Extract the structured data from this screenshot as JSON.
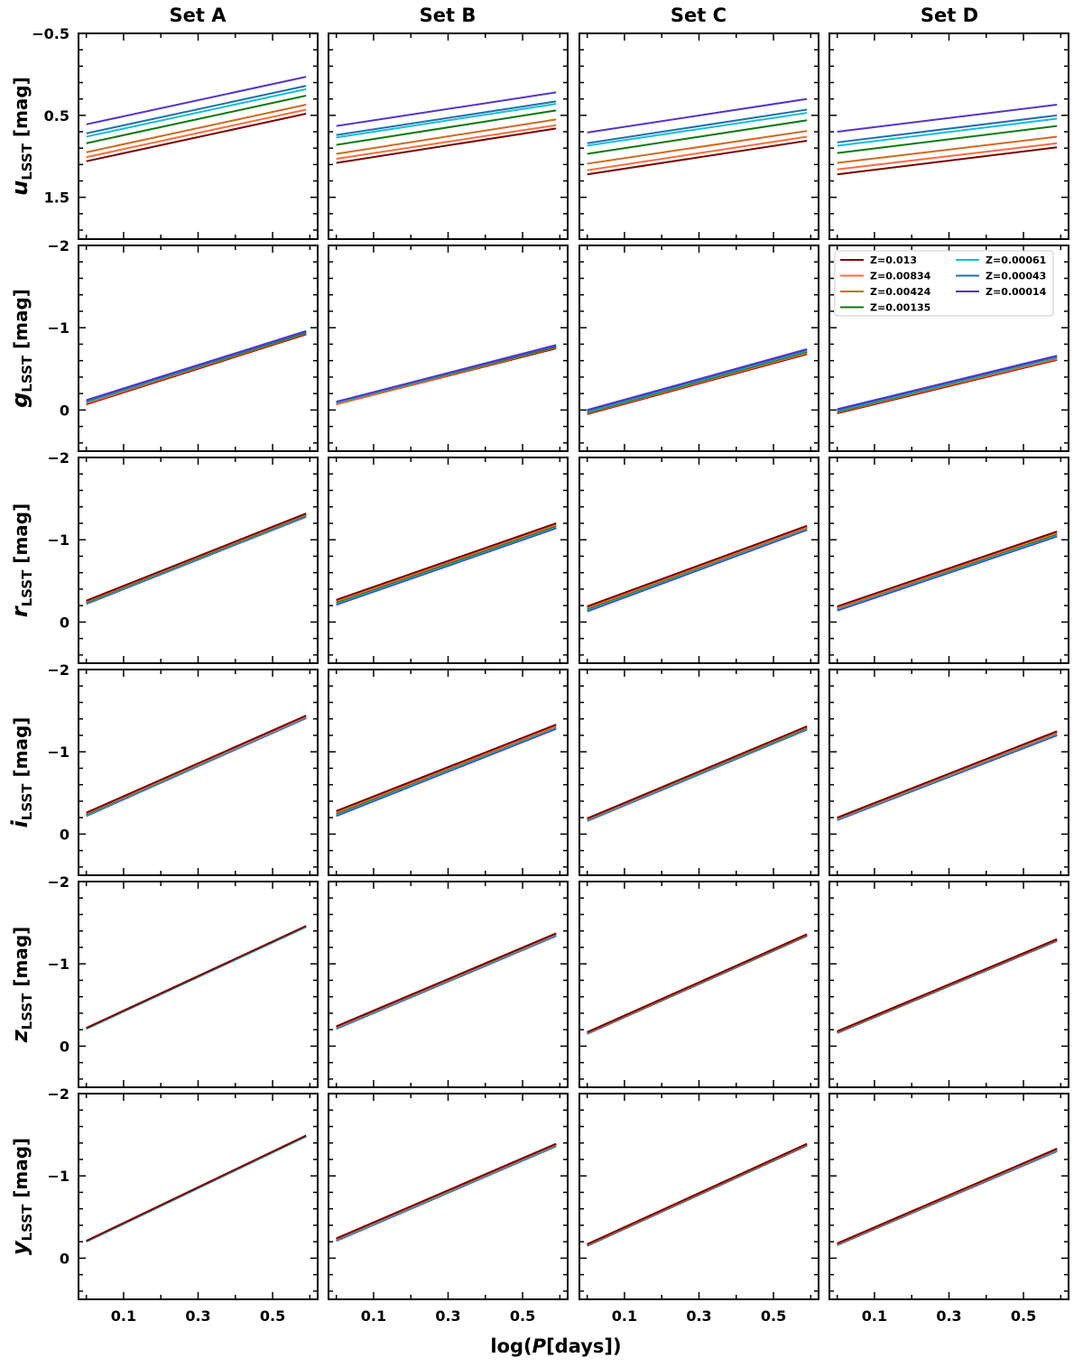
{
  "chart_data": {
    "type": "line",
    "column_titles": [
      "Set A",
      "Set B",
      "Set C",
      "Set D"
    ],
    "xlabel": {
      "pre": "log(",
      "italic": "P",
      "post": "[days])"
    },
    "x": [
      0.0,
      0.59
    ],
    "xlim": [
      -0.021,
      0.621
    ],
    "xticks": [
      0.1,
      0.3,
      0.5
    ],
    "xticklabels": [
      "0.1",
      "0.3",
      "0.5"
    ],
    "series_names": [
      "Z=0.013",
      "Z=0.00834",
      "Z=0.00424",
      "Z=0.00135",
      "Z=0.00061",
      "Z=0.00043",
      "Z=0.00014"
    ],
    "colors": [
      "#7a0000",
      "#ff6a3d",
      "#d2691e",
      "#0b7a0b",
      "#17becf",
      "#1f6fb4",
      "#5533cc"
    ],
    "legend": {
      "placement": "upper-right",
      "panel": "g / Set D"
    },
    "rows": [
      {
        "band": "u",
        "sub": "LSST",
        "unit": " [mag]",
        "ylim": [
          -0.5,
          2.01
        ],
        "yticks": [
          -0.5,
          0.5,
          1.5
        ],
        "yticklabels": [
          "−0.5",
          "0.5",
          "1.5"
        ],
        "draw_order": "forward",
        "panels": [
          {
            "left": [
              1.06,
              1.01,
              0.95,
              0.84,
              0.76,
              0.72,
              0.61
            ],
            "right": [
              0.48,
              0.43,
              0.37,
              0.26,
              0.18,
              0.14,
              0.03
            ]
          },
          {
            "left": [
              1.08,
              1.03,
              0.97,
              0.86,
              0.77,
              0.74,
              0.63
            ],
            "right": [
              0.66,
              0.62,
              0.55,
              0.44,
              0.36,
              0.33,
              0.22
            ]
          },
          {
            "left": [
              1.22,
              1.17,
              1.09,
              0.97,
              0.87,
              0.84,
              0.71
            ],
            "right": [
              0.81,
              0.76,
              0.69,
              0.56,
              0.47,
              0.43,
              0.3
            ]
          },
          {
            "left": [
              1.22,
              1.16,
              1.08,
              0.96,
              0.87,
              0.83,
              0.7
            ],
            "right": [
              0.89,
              0.84,
              0.76,
              0.63,
              0.54,
              0.5,
              0.37
            ]
          }
        ]
      },
      {
        "band": "g",
        "sub": "LSST",
        "unit": " [mag]",
        "ylim": [
          -2,
          0.5
        ],
        "yticks": [
          -2,
          -1,
          0
        ],
        "yticklabels": [
          "−2",
          "−1",
          "0"
        ],
        "draw_order": "forward",
        "panels": [
          {
            "left": [
              -0.07,
              -0.08,
              -0.09,
              -0.1,
              -0.1,
              -0.11,
              -0.12
            ],
            "right": [
              -0.92,
              -0.93,
              -0.93,
              -0.94,
              -0.95,
              -0.95,
              -0.96
            ]
          },
          {
            "left": [
              -0.07,
              -0.07,
              -0.08,
              -0.09,
              -0.09,
              -0.1,
              -0.1
            ],
            "right": [
              -0.75,
              -0.76,
              -0.76,
              -0.77,
              -0.78,
              -0.78,
              -0.79
            ]
          },
          {
            "left": [
              0.05,
              0.04,
              0.03,
              0.03,
              0.02,
              0.01,
              0.0
            ],
            "right": [
              -0.68,
              -0.69,
              -0.7,
              -0.71,
              -0.72,
              -0.73,
              -0.74
            ]
          },
          {
            "left": [
              0.04,
              0.03,
              0.02,
              0.02,
              0.01,
              0.0,
              -0.01
            ],
            "right": [
              -0.61,
              -0.62,
              -0.63,
              -0.64,
              -0.64,
              -0.65,
              -0.66
            ]
          }
        ]
      },
      {
        "band": "r",
        "sub": "LSST",
        "unit": " [mag]",
        "ylim": [
          -2,
          0.5
        ],
        "yticks": [
          -2,
          -1,
          0
        ],
        "yticklabels": [
          "−2",
          "−1",
          "0"
        ],
        "draw_order": "reverse",
        "panels": [
          {
            "left": [
              -0.26,
              -0.25,
              -0.25,
              -0.24,
              -0.23,
              -0.23,
              -0.22
            ],
            "right": [
              -1.32,
              -1.31,
              -1.31,
              -1.3,
              -1.29,
              -1.29,
              -1.28
            ]
          },
          {
            "left": [
              -0.27,
              -0.26,
              -0.25,
              -0.24,
              -0.23,
              -0.22,
              -0.21
            ],
            "right": [
              -1.2,
              -1.19,
              -1.18,
              -1.17,
              -1.16,
              -1.15,
              -1.14
            ]
          },
          {
            "left": [
              -0.19,
              -0.18,
              -0.17,
              -0.16,
              -0.15,
              -0.14,
              -0.13
            ],
            "right": [
              -1.17,
              -1.16,
              -1.15,
              -1.15,
              -1.14,
              -1.13,
              -1.12
            ]
          },
          {
            "left": [
              -0.19,
              -0.18,
              -0.17,
              -0.17,
              -0.16,
              -0.15,
              -0.14
            ],
            "right": [
              -1.1,
              -1.09,
              -1.08,
              -1.07,
              -1.06,
              -1.05,
              -1.04
            ]
          }
        ]
      },
      {
        "band": "i",
        "sub": "LSST",
        "unit": " [mag]",
        "ylim": [
          -2,
          0.5
        ],
        "yticks": [
          -2,
          -1,
          0
        ],
        "yticklabels": [
          "−2",
          "−1",
          "0"
        ],
        "draw_order": "reverse",
        "panels": [
          {
            "left": [
              -0.26,
              -0.25,
              -0.25,
              -0.24,
              -0.23,
              -0.23,
              -0.22
            ],
            "right": [
              -1.44,
              -1.43,
              -1.43,
              -1.43,
              -1.42,
              -1.42,
              -1.41
            ]
          },
          {
            "left": [
              -0.28,
              -0.27,
              -0.26,
              -0.25,
              -0.24,
              -0.23,
              -0.22
            ],
            "right": [
              -1.33,
              -1.32,
              -1.31,
              -1.31,
              -1.3,
              -1.29,
              -1.28
            ]
          },
          {
            "left": [
              -0.19,
              -0.19,
              -0.18,
              -0.18,
              -0.17,
              -0.17,
              -0.16
            ],
            "right": [
              -1.31,
              -1.3,
              -1.3,
              -1.29,
              -1.28,
              -1.28,
              -1.27
            ]
          },
          {
            "left": [
              -0.2,
              -0.2,
              -0.19,
              -0.19,
              -0.18,
              -0.18,
              -0.17
            ],
            "right": [
              -1.25,
              -1.24,
              -1.23,
              -1.23,
              -1.22,
              -1.21,
              -1.2
            ]
          }
        ]
      },
      {
        "band": "z",
        "sub": "LSST",
        "unit": " [mag]",
        "ylim": [
          -2,
          0.5
        ],
        "yticks": [
          -2,
          -1,
          0
        ],
        "yticklabels": [
          "−2",
          "−1",
          "0"
        ],
        "draw_order": "reverse",
        "panels": [
          {
            "left": [
              -0.22,
              -0.22,
              -0.22,
              -0.22,
              -0.21,
              -0.21,
              -0.21
            ],
            "right": [
              -1.46,
              -1.46,
              -1.46,
              -1.46,
              -1.45,
              -1.45,
              -1.45
            ]
          },
          {
            "left": [
              -0.24,
              -0.24,
              -0.23,
              -0.23,
              -0.22,
              -0.22,
              -0.21
            ],
            "right": [
              -1.37,
              -1.37,
              -1.36,
              -1.36,
              -1.35,
              -1.35,
              -1.34
            ]
          },
          {
            "left": [
              -0.17,
              -0.17,
              -0.16,
              -0.16,
              -0.16,
              -0.15,
              -0.15
            ],
            "right": [
              -1.36,
              -1.36,
              -1.35,
              -1.35,
              -1.35,
              -1.34,
              -1.34
            ]
          },
          {
            "left": [
              -0.18,
              -0.18,
              -0.17,
              -0.17,
              -0.17,
              -0.16,
              -0.16
            ],
            "right": [
              -1.3,
              -1.3,
              -1.29,
              -1.29,
              -1.29,
              -1.28,
              -1.28
            ]
          }
        ]
      },
      {
        "band": "y",
        "sub": "LSST",
        "unit": " [mag]",
        "ylim": [
          -2,
          0.5
        ],
        "yticks": [
          -2,
          -1,
          0
        ],
        "yticklabels": [
          "−2",
          "−1",
          "0"
        ],
        "draw_order": "reverse",
        "panels": [
          {
            "left": [
              -0.21,
              -0.21,
              -0.21,
              -0.21,
              -0.2,
              -0.2,
              -0.2
            ],
            "right": [
              -1.49,
              -1.49,
              -1.49,
              -1.49,
              -1.48,
              -1.48,
              -1.48
            ]
          },
          {
            "left": [
              -0.24,
              -0.24,
              -0.23,
              -0.23,
              -0.22,
              -0.22,
              -0.21
            ],
            "right": [
              -1.39,
              -1.39,
              -1.38,
              -1.38,
              -1.37,
              -1.37,
              -1.36
            ]
          },
          {
            "left": [
              -0.17,
              -0.17,
              -0.16,
              -0.16,
              -0.16,
              -0.15,
              -0.15
            ],
            "right": [
              -1.39,
              -1.39,
              -1.38,
              -1.38,
              -1.38,
              -1.37,
              -1.37
            ]
          },
          {
            "left": [
              -0.18,
              -0.18,
              -0.17,
              -0.17,
              -0.17,
              -0.16,
              -0.16
            ],
            "right": [
              -1.33,
              -1.33,
              -1.32,
              -1.32,
              -1.31,
              -1.31,
              -1.3
            ]
          }
        ]
      }
    ]
  }
}
